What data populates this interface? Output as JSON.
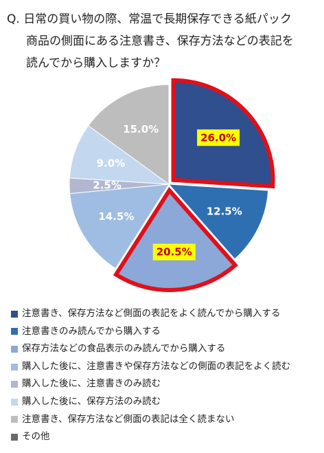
{
  "question": {
    "prefix": "Q.",
    "line1": "日常の買い物の際、常温で長期保存できる紙パック",
    "line2": "商品の側面にある注意書き、保存方法などの表記を",
    "line3": "読んでから購入しますか？"
  },
  "chart_data": {
    "type": "pie",
    "start_angle_deg": 0,
    "direction": "clockwise",
    "slices": [
      {
        "label": "注意書き、保存方法など側面の表記をよく読んでから購入する",
        "value": 26.0,
        "display": "26.0%",
        "color": "#2f4f8f",
        "highlighted": true
      },
      {
        "label": "注意書きのみ読んでから購入する",
        "value": 12.5,
        "display": "12.5%",
        "color": "#2e6fb2",
        "highlighted": false
      },
      {
        "label": "保存方法などの食品表示のみ読んでから購入する",
        "value": 20.5,
        "display": "20.5%",
        "color": "#8ba8d8",
        "highlighted": true
      },
      {
        "label": "購入した後に、注意書きや保存方法などの側面の表記をよく読む",
        "value": 14.5,
        "display": "14.5%",
        "color": "#9fbde3",
        "highlighted": false
      },
      {
        "label": "購入した後に、注意書きのみ読む",
        "value": 2.5,
        "display": "2.5%",
        "color": "#b2b7cf",
        "highlighted": false
      },
      {
        "label": "購入した後に、保存方法のみ読む",
        "value": 9.0,
        "display": "9.0%",
        "color": "#c3d8ee",
        "highlighted": false
      },
      {
        "label": "注意書き、保存方法など側面の表記は全く読まない",
        "value": 15.0,
        "display": "15.0%",
        "color": "#bdbdbd",
        "highlighted": false
      },
      {
        "label": "その他",
        "value": 0,
        "display": "",
        "color": "#6b6b6b",
        "highlighted": false
      }
    ],
    "highlight_color": "#e0101a",
    "label_highlight_bg": "#ffff00",
    "label_highlight_text": "#c00000",
    "label_text_color": "#ffffff"
  }
}
